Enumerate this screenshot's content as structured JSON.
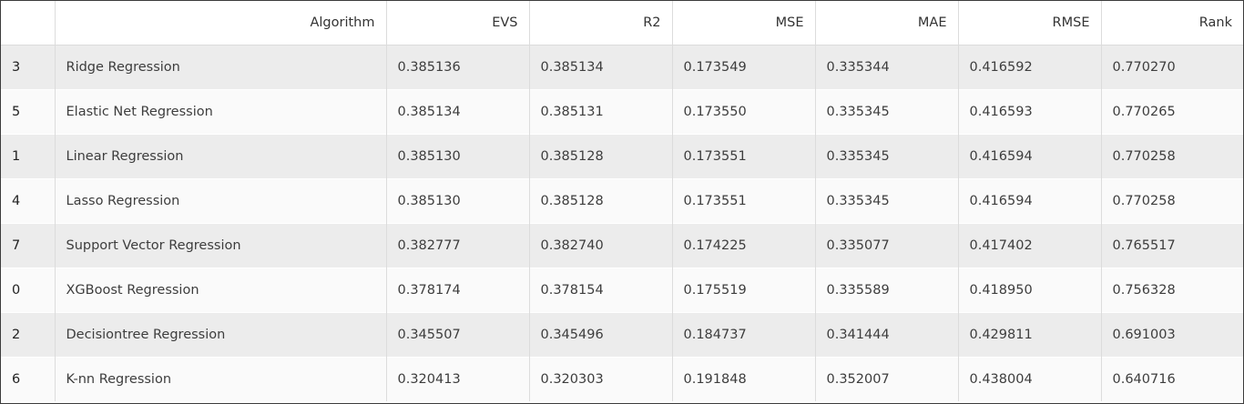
{
  "table": {
    "headers": [
      "",
      "Algorithm",
      "EVS",
      "R2",
      "MSE",
      "MAE",
      "RMSE",
      "Rank"
    ],
    "rows": [
      [
        "3",
        "Ridge Regression",
        "0.385136",
        "0.385134",
        "0.173549",
        "0.335344",
        "0.416592",
        "0.770270"
      ],
      [
        "5",
        "Elastic Net Regression",
        "0.385134",
        "0.385131",
        "0.173550",
        "0.335345",
        "0.416593",
        "0.770265"
      ],
      [
        "1",
        "Linear Regression",
        "0.385130",
        "0.385128",
        "0.173551",
        "0.335345",
        "0.416594",
        "0.770258"
      ],
      [
        "4",
        "Lasso Regression",
        "0.385130",
        "0.385128",
        "0.173551",
        "0.335345",
        "0.416594",
        "0.770258"
      ],
      [
        "7",
        "Support Vector Regression",
        "0.382777",
        "0.382740",
        "0.174225",
        "0.335077",
        "0.417402",
        "0.765517"
      ],
      [
        "0",
        "XGBoost Regression",
        "0.378174",
        "0.378154",
        "0.175519",
        "0.335589",
        "0.418950",
        "0.756328"
      ],
      [
        "2",
        "Decisiontree Regression",
        "0.345507",
        "0.345496",
        "0.184737",
        "0.341444",
        "0.429811",
        "0.691003"
      ],
      [
        "6",
        "K-nn Regression",
        "0.320413",
        "0.320303",
        "0.191848",
        "0.352007",
        "0.438004",
        "0.640716"
      ]
    ]
  }
}
